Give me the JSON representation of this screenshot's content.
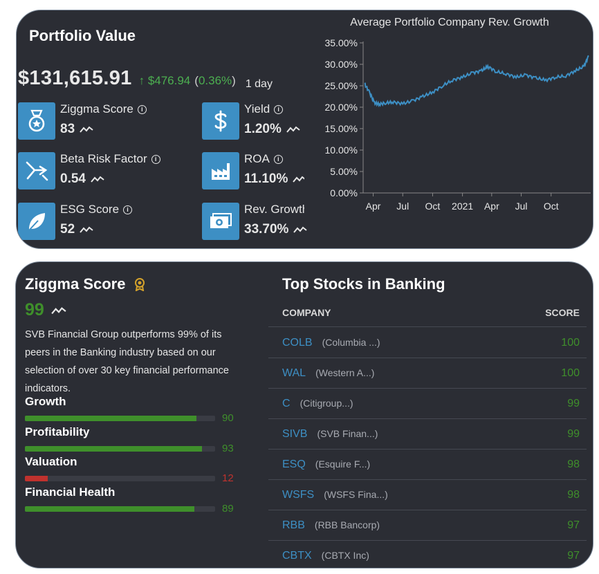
{
  "portfolio": {
    "title": "Portfolio Value",
    "value": "$131,615.91",
    "change_arrow": "↑",
    "change_amount": "$476.94",
    "change_percent": "0.36%",
    "period": "1 day",
    "metrics": [
      {
        "label": "Ziggma Score",
        "value": "83",
        "icon": "medal-icon"
      },
      {
        "label": "Beta Risk Factor",
        "value": "0.54",
        "icon": "beta-icon"
      },
      {
        "label": "ESG Score",
        "value": "52",
        "icon": "leaf-icon"
      },
      {
        "label": "Yield",
        "value": "1.20%",
        "icon": "dollar-icon"
      },
      {
        "label": "ROA",
        "value": "11.10%",
        "icon": "factory-icon"
      },
      {
        "label": "Rev. Growth",
        "value": "33.70%",
        "icon": "money-icon"
      }
    ]
  },
  "chart_data": {
    "type": "line",
    "title": "Average Portfolio Company Rev. Growth",
    "xlabel": "",
    "ylabel": "",
    "y_ticks": [
      "0.00%",
      "5.00%",
      "10.00%",
      "15.00%",
      "20.00%",
      "25.00%",
      "30.00%",
      "35.00%"
    ],
    "x_ticks": [
      "Apr",
      "Jul",
      "Oct",
      "2021",
      "Apr",
      "Jul",
      "Oct"
    ],
    "ylim": [
      0,
      35
    ],
    "xlim": [
      "2020-03-01",
      "2022-01-31"
    ],
    "grid": false,
    "color": "#3d8fc4",
    "series": [
      {
        "x": [
          "2020-03-05",
          "2020-03-20",
          "2020-04-05",
          "2020-04-20",
          "2020-05-10",
          "2020-06-01",
          "2020-07-01",
          "2020-08-01",
          "2020-09-01",
          "2020-10-01",
          "2020-11-01",
          "2020-12-01",
          "2021-01-01",
          "2021-02-01",
          "2021-03-01",
          "2021-03-20",
          "2021-04-15",
          "2021-05-15",
          "2021-06-15",
          "2021-07-15",
          "2021-08-15",
          "2021-09-15",
          "2021-10-15",
          "2021-11-15",
          "2021-12-15",
          "2022-01-10",
          "2022-01-25"
        ],
        "y": [
          25.5,
          23.5,
          21.0,
          20.7,
          21.0,
          21.2,
          20.8,
          21.5,
          22.5,
          23.5,
          25.0,
          26.3,
          27.0,
          28.0,
          28.5,
          29.5,
          28.3,
          27.8,
          27.0,
          27.5,
          26.8,
          26.3,
          27.0,
          27.3,
          28.5,
          29.5,
          32.0
        ]
      }
    ]
  },
  "ziggma": {
    "title": "Ziggma Score",
    "score": "99",
    "description": "SVB Financial Group outperforms 99% of its peers in the Banking industry based on our selection of over 30 key financial performance indicators.",
    "bars": [
      {
        "label": "Growth",
        "value": 90,
        "display": "90",
        "color": "#3f8f2b"
      },
      {
        "label": "Profitability",
        "value": 93,
        "display": "93",
        "color": "#3f8f2b"
      },
      {
        "label": "Valuation",
        "value": 12,
        "display": "12",
        "color": "#c0322e"
      },
      {
        "label": "Financial Health",
        "value": 89,
        "display": "89",
        "color": "#3f8f2b"
      }
    ]
  },
  "top_stocks": {
    "title": "Top Stocks in Banking",
    "col_company": "COMPANY",
    "col_score": "SCORE",
    "rows": [
      {
        "ticker": "COLB",
        "name": "(Columbia ...)",
        "score": "100"
      },
      {
        "ticker": "WAL",
        "name": "(Western A...)",
        "score": "100"
      },
      {
        "ticker": "C",
        "name": "(Citigroup...)",
        "score": "99"
      },
      {
        "ticker": "SIVB",
        "name": "(SVB Finan...)",
        "score": "99"
      },
      {
        "ticker": "ESQ",
        "name": "(Esquire F...)",
        "score": "98"
      },
      {
        "ticker": "WSFS",
        "name": "(WSFS Fina...)",
        "score": "98"
      },
      {
        "ticker": "RBB",
        "name": "(RBB Bancorp)",
        "score": "97"
      },
      {
        "ticker": "CBTX",
        "name": "(CBTX Inc)",
        "score": "97"
      }
    ]
  }
}
